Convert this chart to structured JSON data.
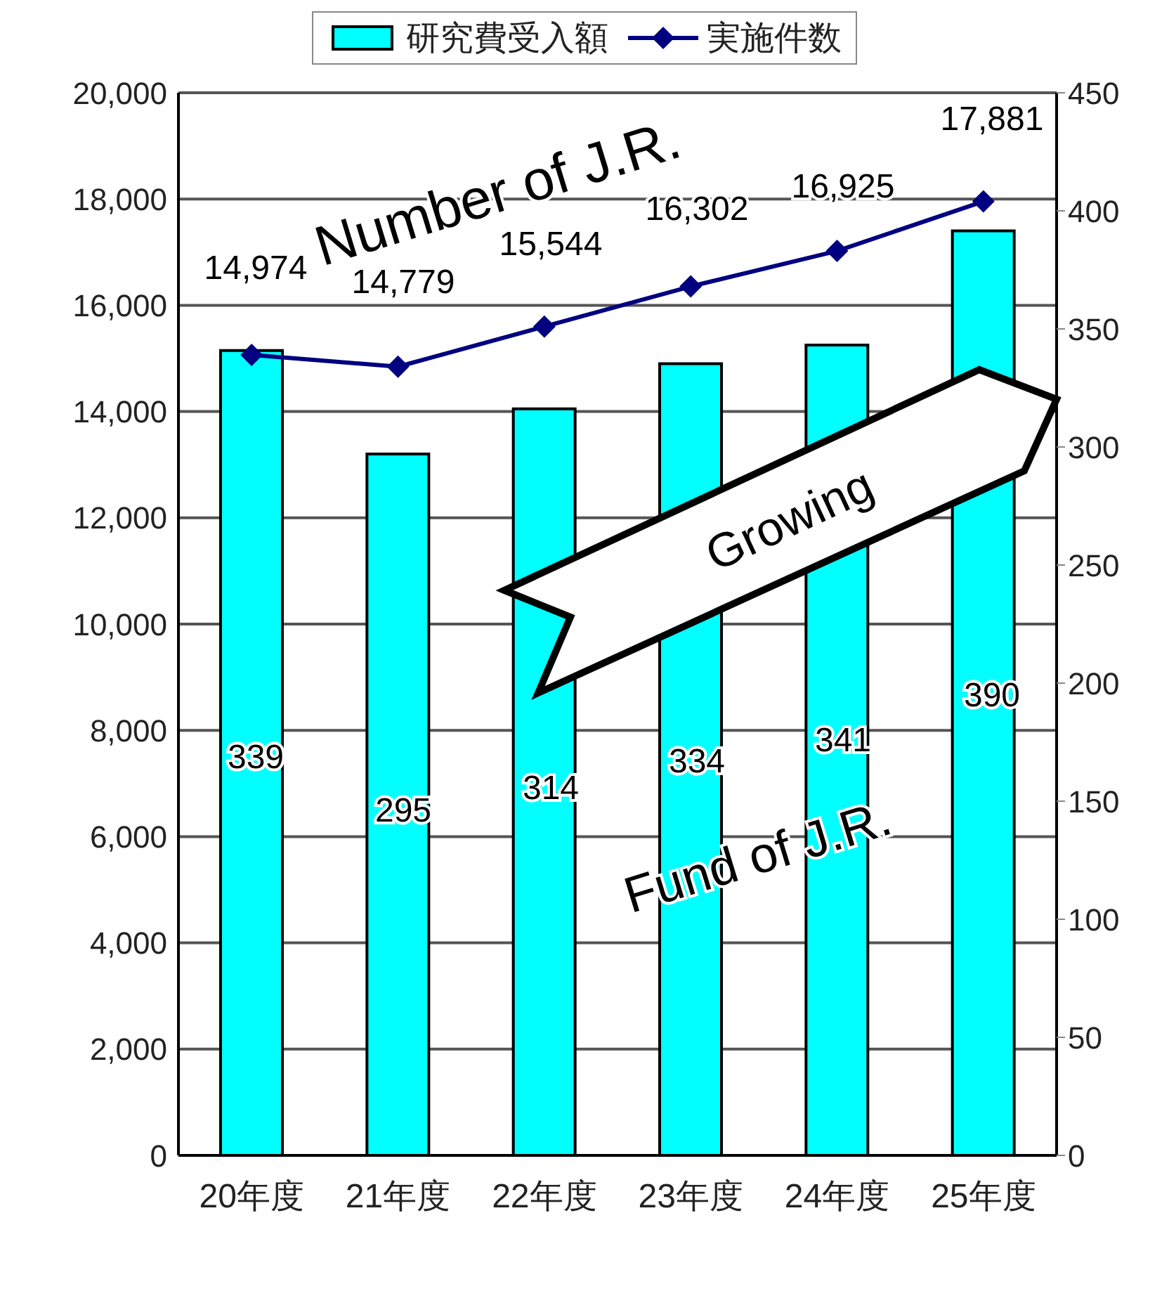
{
  "chart_data": {
    "type": "bar",
    "categories": [
      "20年度",
      "21年度",
      "22年度",
      "23年度",
      "24年度",
      "25年度"
    ],
    "series": [
      {
        "name": "研究費受入額",
        "color": "#00ffff",
        "values": [
          15150,
          13200,
          14050,
          14900,
          15250,
          17400
        ]
      },
      {
        "name": "実施件数",
        "type": "line",
        "axis": "y2",
        "color": "#000080",
        "values": [
          339,
          334,
          351,
          368,
          383,
          404
        ]
      }
    ],
    "ylim": [
      0,
      20000
    ],
    "yticks": [
      0,
      {
        "value": 2000,
        "label": "2,000"
      },
      {
        "value": 4000,
        "label": "4,000"
      },
      {
        "value": 6000,
        "label": "6,000"
      },
      {
        "value": 8000,
        "label": "8,000"
      },
      {
        "value": 10000,
        "label": "10,000"
      },
      {
        "value": 12000,
        "label": "12,000"
      },
      {
        "value": 14000,
        "label": "14,000"
      },
      {
        "value": 16000,
        "label": "16,000"
      },
      {
        "value": 18000,
        "label": "18,000"
      },
      {
        "value": 20000,
        "label": "20,000"
      }
    ],
    "y2lim": [
      0,
      450
    ],
    "y2ticks": [
      0,
      50,
      100,
      150,
      200,
      250,
      300,
      350,
      400,
      450
    ],
    "grid": "y",
    "legend": "top",
    "marker": "diamond",
    "annotations": [
      "14,974",
      "14,779",
      "15,544",
      "16,302",
      "16,925",
      "17,881",
      "339",
      "295",
      "314",
      "334",
      "341",
      "390",
      "Number of J.R.",
      "Fund of J.R.",
      "Growing"
    ]
  }
}
